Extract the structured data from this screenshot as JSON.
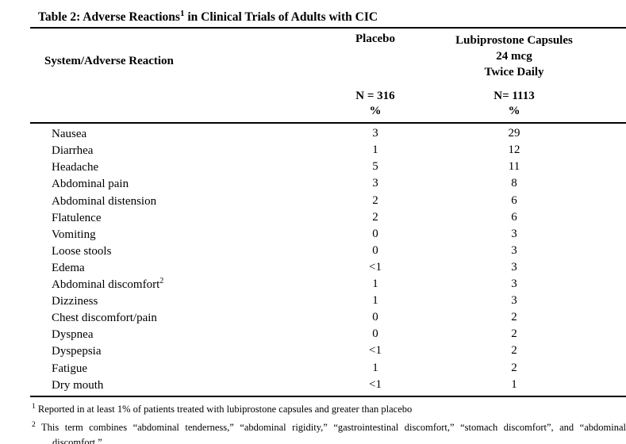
{
  "document": {
    "title": {
      "prefix": "Table 2: Adverse Reactions",
      "superscript": "1",
      "suffix": " in Clinical Trials of Adults with CIC"
    }
  },
  "table": {
    "header": {
      "col1": "System/Adverse Reaction",
      "placebo": {
        "name": "Placebo",
        "n": "N = 316",
        "pct": "%"
      },
      "lubiprostone": {
        "line1": "Lubiprostone Capsules",
        "line2": "24 mcg",
        "line3": "Twice Daily",
        "n": "N= 1113",
        "pct": "%"
      }
    },
    "rows": [
      {
        "label": "Nausea",
        "sup": "",
        "placebo": "3",
        "lubiprostone": "29"
      },
      {
        "label": "Diarrhea",
        "sup": "",
        "placebo": "1",
        "lubiprostone": "12"
      },
      {
        "label": "Headache",
        "sup": "",
        "placebo": "5",
        "lubiprostone": "11"
      },
      {
        "label": "Abdominal pain",
        "sup": "",
        "placebo": "3",
        "lubiprostone": "8"
      },
      {
        "label": "Abdominal distension",
        "sup": "",
        "placebo": "2",
        "lubiprostone": "6"
      },
      {
        "label": "Flatulence",
        "sup": "",
        "placebo": "2",
        "lubiprostone": "6"
      },
      {
        "label": "Vomiting",
        "sup": "",
        "placebo": "0",
        "lubiprostone": "3"
      },
      {
        "label": "Loose stools",
        "sup": "",
        "placebo": "0",
        "lubiprostone": "3"
      },
      {
        "label": "Edema",
        "sup": "",
        "placebo": "<1",
        "lubiprostone": "3"
      },
      {
        "label": "Abdominal discomfort",
        "sup": "2",
        "placebo": "1",
        "lubiprostone": "3"
      },
      {
        "label": "Dizziness",
        "sup": "",
        "placebo": "1",
        "lubiprostone": "3"
      },
      {
        "label": "Chest discomfort/pain",
        "sup": "",
        "placebo": "0",
        "lubiprostone": "2"
      },
      {
        "label": "Dyspnea",
        "sup": "",
        "placebo": "0",
        "lubiprostone": "2"
      },
      {
        "label": "Dyspepsia",
        "sup": "",
        "placebo": "<1",
        "lubiprostone": "2"
      },
      {
        "label": "Fatigue",
        "sup": "",
        "placebo": "1",
        "lubiprostone": "2"
      },
      {
        "label": "Dry mouth",
        "sup": "",
        "placebo": "<1",
        "lubiprostone": "1"
      }
    ],
    "footnotes": [
      {
        "marker": "1",
        "text": "Reported in at least 1% of patients treated with lubiprostone capsules and greater than placebo"
      },
      {
        "marker": "2",
        "text": "This term combines “abdominal tenderness,” “abdominal rigidity,” “gastrointestinal discomfort,” “stomach discomfort”, and “abdominal discomfort.”"
      }
    ]
  }
}
